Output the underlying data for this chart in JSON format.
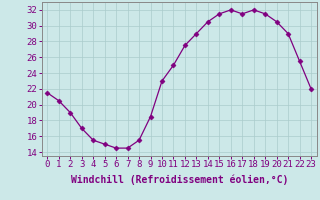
{
  "x": [
    0,
    1,
    2,
    3,
    4,
    5,
    6,
    7,
    8,
    9,
    10,
    11,
    12,
    13,
    14,
    15,
    16,
    17,
    18,
    19,
    20,
    21,
    22,
    23
  ],
  "y": [
    21.5,
    20.5,
    19.0,
    17.0,
    15.5,
    15.0,
    14.5,
    14.5,
    15.5,
    18.5,
    23.0,
    25.0,
    27.5,
    29.0,
    30.5,
    31.5,
    32.0,
    31.5,
    32.0,
    31.5,
    30.5,
    29.0,
    25.5,
    22.0
  ],
  "line_color": "#800080",
  "marker": "D",
  "marker_size": 2.5,
  "bg_color": "#cce8e8",
  "grid_color": "#aacccc",
  "xlabel": "Windchill (Refroidissement éolien,°C)",
  "xlabel_fontsize": 7,
  "tick_fontsize": 6.5,
  "ylim": [
    13.5,
    33.0
  ],
  "xlim": [
    -0.5,
    23.5
  ],
  "yticks": [
    14,
    16,
    18,
    20,
    22,
    24,
    26,
    28,
    30,
    32
  ],
  "xticks": [
    0,
    1,
    2,
    3,
    4,
    5,
    6,
    7,
    8,
    9,
    10,
    11,
    12,
    13,
    14,
    15,
    16,
    17,
    18,
    19,
    20,
    21,
    22,
    23
  ],
  "spine_color": "#888888"
}
